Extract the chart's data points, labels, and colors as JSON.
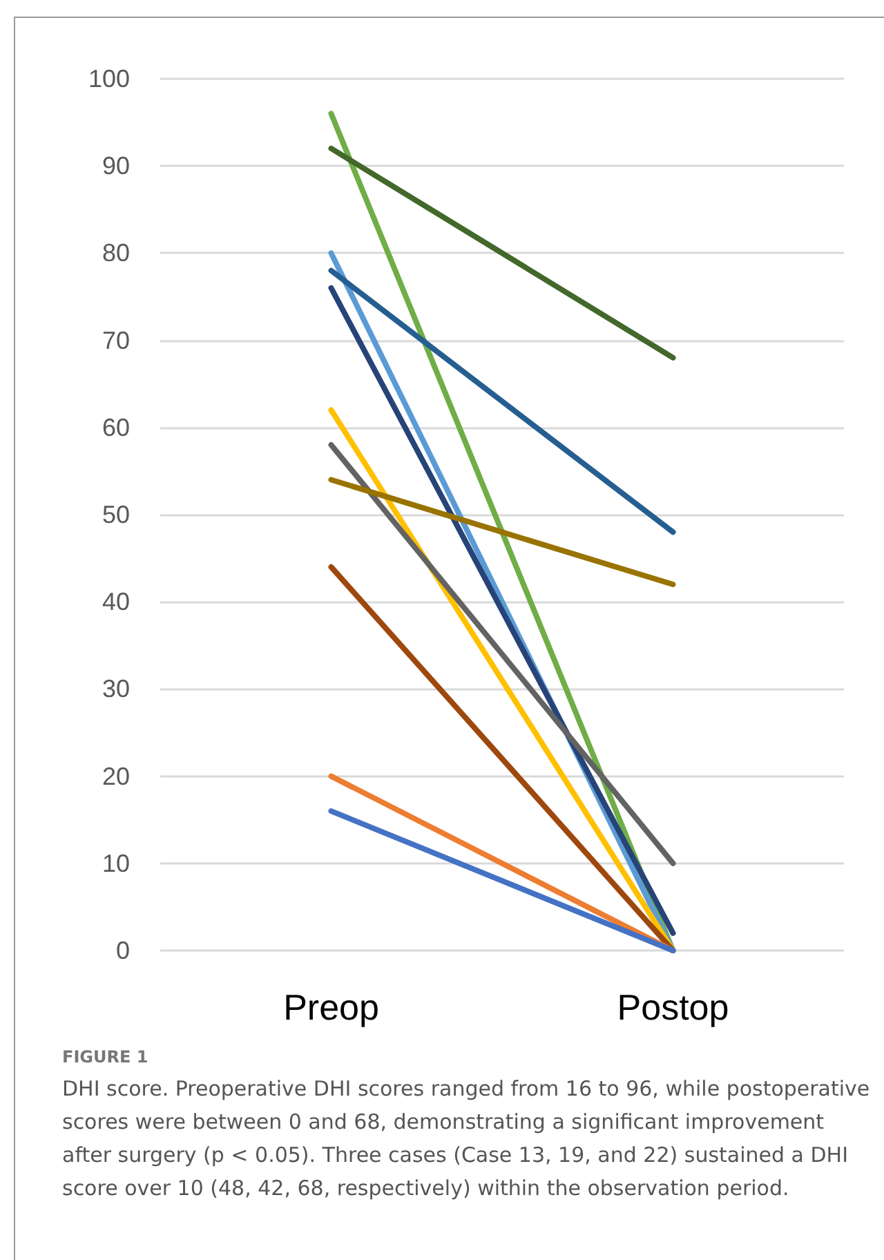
{
  "chart_data": {
    "type": "line",
    "title": "FIGURE 1",
    "annotations": [
      "DHI score. Preoperative DHI scores ranged from 16 to 96, while postoperative scores were between 0 and 68, demonstrating a significant improvement after surgery (p < 0.05). Three cases (Case 13, 19, and 22) sustained a DHI score over 10 (48, 42, 68, respectively) within the observation period."
    ],
    "categories": [
      "Preop",
      "Postop"
    ],
    "series": [
      {
        "color": "#70ad47",
        "values": [
          96,
          0
        ]
      },
      {
        "color": "#43682b",
        "values": [
          92,
          68
        ]
      },
      {
        "color": "#5b9bd5",
        "values": [
          80,
          0
        ]
      },
      {
        "color": "#255e91",
        "values": [
          78,
          48
        ]
      },
      {
        "color": "#264478",
        "values": [
          76,
          2
        ]
      },
      {
        "color": "#ffc000",
        "values": [
          62,
          0
        ]
      },
      {
        "color": "#636363",
        "values": [
          58,
          10
        ]
      },
      {
        "color": "#997300",
        "values": [
          54,
          42
        ]
      },
      {
        "color": "#9e480e",
        "values": [
          44,
          0
        ]
      },
      {
        "color": "#ed7d31",
        "values": [
          20,
          0
        ]
      },
      {
        "color": "#4472c4",
        "values": [
          16,
          0
        ]
      }
    ],
    "ylim": [
      0,
      100
    ],
    "yticks": [
      0,
      10,
      20,
      30,
      40,
      50,
      60,
      70,
      80,
      90,
      100
    ],
    "grid": "y",
    "marker": "none",
    "line_style": "solid"
  }
}
